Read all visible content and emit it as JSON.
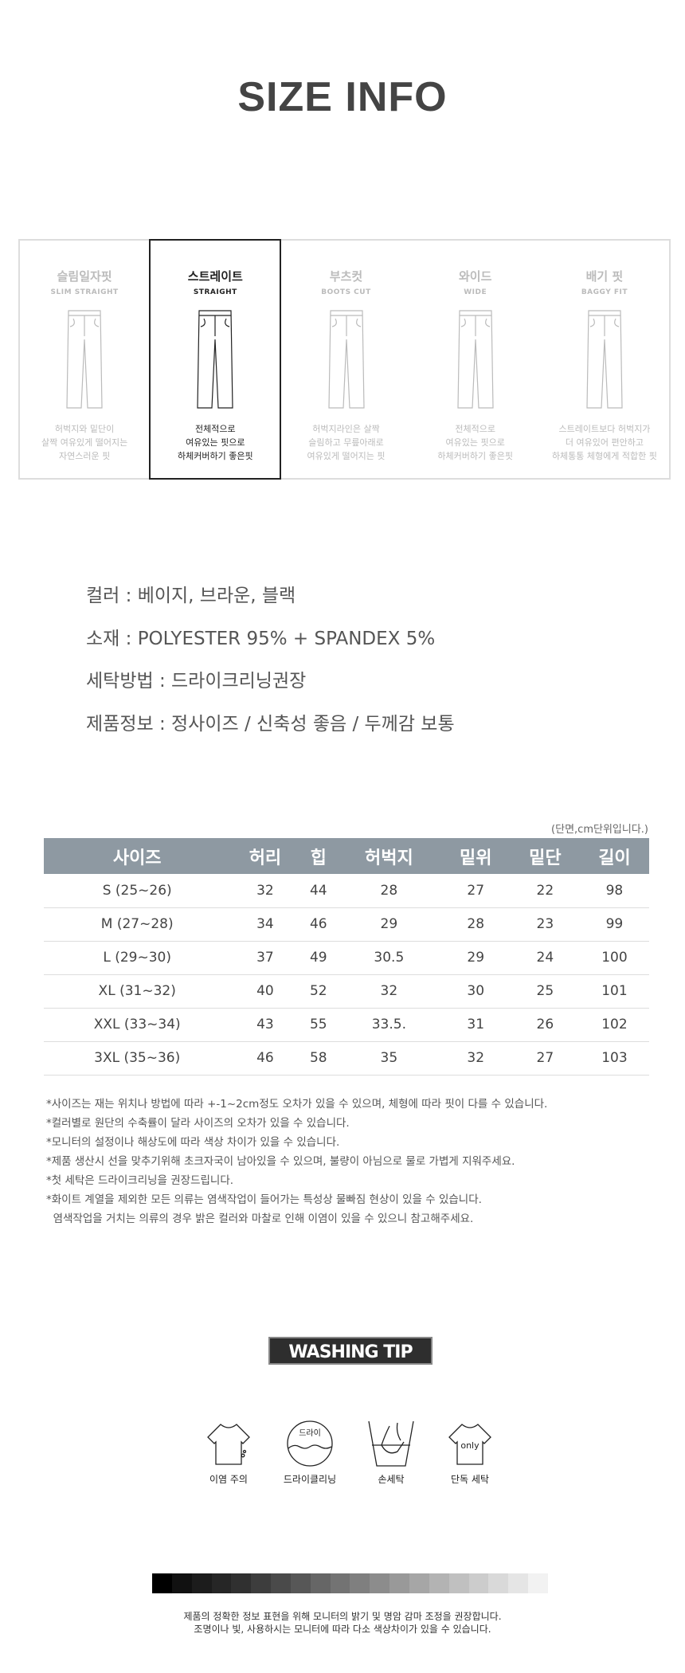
{
  "title": "SIZE INFO",
  "fits": [
    {
      "ko": "슬림일자핏",
      "en": "SLIM STRAIGHT",
      "desc": [
        "허벅지와 밑단이",
        "살짝 여유있게 떨어지는",
        "자연스러운 핏"
      ],
      "selected": false
    },
    {
      "ko": "스트레이트",
      "en": "STRAIGHT",
      "desc": [
        "전체적으로",
        "여유있는 핏으로",
        "하체커버하기 좋은핏"
      ],
      "selected": true
    },
    {
      "ko": "부츠컷",
      "en": "BOOTS CUT",
      "desc": [
        "허벅지라인은 살짝",
        "슬림하고 무릎아래로",
        "여유있게 떨어지는 핏"
      ],
      "selected": false
    },
    {
      "ko": "와이드",
      "en": "WIDE",
      "desc": [
        "전체적으로",
        "여유있는 핏으로",
        "하체커버하기 좋은핏"
      ],
      "selected": false
    },
    {
      "ko": "배기 핏",
      "en": "BAGGY FIT",
      "desc": [
        "스트레이트보다 허벅지가",
        "더 여유있어 편안하고",
        "하체통통 체형에게 적합한 핏"
      ],
      "selected": false
    }
  ],
  "info": [
    "컬러 : 베이지, 브라운, 블랙",
    "소재 : POLYESTER 95% + SPANDEX 5%",
    "세탁방법 : 드라이크리닝권장",
    "제품정보 : 정사이즈 / 신축성 좋음 / 두께감 보통"
  ],
  "table": {
    "unit_note": "(단면,cm단위입니다.)",
    "headers": [
      "사이즈",
      "허리",
      "힙",
      "허벅지",
      "밑위",
      "밑단",
      "길이"
    ],
    "rows": [
      [
        "S (25~26)",
        "32",
        "44",
        "28",
        "27",
        "22",
        "98"
      ],
      [
        "M (27~28)",
        "34",
        "46",
        "29",
        "28",
        "23",
        "99"
      ],
      [
        "L (29~30)",
        "37",
        "49",
        "30.5",
        "29",
        "24",
        "100"
      ],
      [
        "XL (31~32)",
        "40",
        "52",
        "32",
        "30",
        "25",
        "101"
      ],
      [
        "XXL (33~34)",
        "43",
        "55",
        "33.5.",
        "31",
        "26",
        "102"
      ],
      [
        "3XL (35~36)",
        "46",
        "58",
        "35",
        "32",
        "27",
        "103"
      ]
    ],
    "header_color": "#8e99a2"
  },
  "notes": [
    "*사이즈는 재는 위치나 방법에 따라 +-1~2cm정도 오차가 있을 수 있으며, 체형에 따라 핏이 다를 수 있습니다.",
    "*컬러별로 원단의 수축률이 달라 사이즈의 오차가 있을 수 있습니다.",
    "*모니터의 설정이나 해상도에 따라 색상 차이가 있을 수 있습니다.",
    "*제품 생산시 선을 맞추기위해 초크자국이 남아있을 수 있으며, 불량이 아님으로 물로 가볍게 지워주세요.",
    "*첫 세탁은 드라이크리닝을 권장드립니다.",
    "*화이트 계열을 제외한 모든 의류는 염색작업이 들어가는 특성상 물빠짐 현상이 있을 수 있습니다.",
    "  염색작업을 거치는 의류의 경우 밝은 컬러와 마찰로 인해 이염이 있을 수 있으니 참고해주세요."
  ],
  "washing": {
    "title": "WASHING TIP",
    "items": [
      {
        "label": "이염 주의",
        "icon": "tshirt-stain-icon"
      },
      {
        "label": "드라이클리닝",
        "icon": "dry-clean-icon",
        "icon_text": "드라이"
      },
      {
        "label": "손세탁",
        "icon": "hand-wash-icon"
      },
      {
        "label": "단독 세탁",
        "icon": "tshirt-only-icon",
        "icon_text": "only"
      }
    ]
  },
  "gray_scale": [
    "#000000",
    "#111111",
    "#1c1c1c",
    "#262626",
    "#303030",
    "#3d3d3d",
    "#4a4a4a",
    "#575757",
    "#666666",
    "#737373",
    "#7f7f7f",
    "#8c8c8c",
    "#999999",
    "#a6a6a6",
    "#b3b3b3",
    "#c0c0c0",
    "#cccccc",
    "#d9d9d9",
    "#e5e5e5",
    "#f2f2f2"
  ],
  "footer": [
    "제품의 정확한 정보 표현을 위해 모니터의 밝기 및 명암 감마 조정을 권장합니다.",
    "조명이나 빛, 사용하시는 모니터에 따라 다소 색상차이가 있을 수 있습니다."
  ]
}
